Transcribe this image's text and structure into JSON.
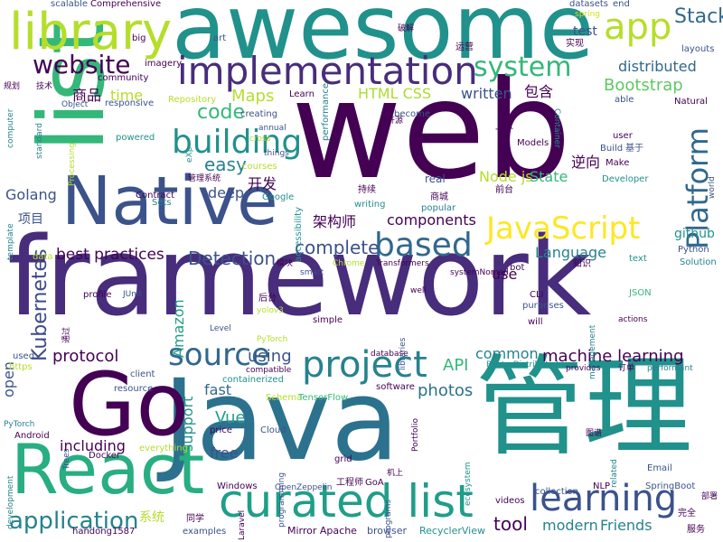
{
  "words": [
    {
      "text": "web",
      "color": "#440154"
    },
    {
      "text": "framework",
      "color": "#472d7b"
    },
    {
      "text": "awesome",
      "color": "#21918c"
    },
    {
      "text": "Java",
      "color": "#2c728e"
    },
    {
      "text": "list",
      "color": "#35b779"
    },
    {
      "text": "管理",
      "color": "#21918c"
    },
    {
      "text": "Go",
      "color": "#440154"
    },
    {
      "text": "React",
      "color": "#28ae80"
    },
    {
      "text": "Native",
      "color": "#3b528b"
    },
    {
      "text": "library",
      "color": "#b5de2b"
    },
    {
      "text": "implementation",
      "color": "#472d7b"
    },
    {
      "text": "curated list",
      "color": "#1f9e89"
    },
    {
      "text": "project",
      "color": "#26828e"
    },
    {
      "text": "source",
      "color": "#31688e"
    },
    {
      "text": "learning",
      "color": "#3b528b"
    },
    {
      "text": "building",
      "color": "#21918c"
    },
    {
      "text": "based",
      "color": "#31688e"
    },
    {
      "text": "JavaScript",
      "color": "#fde725"
    },
    {
      "text": "app",
      "color": "#b5de2b"
    },
    {
      "text": "system",
      "color": "#35b779"
    },
    {
      "text": "website",
      "color": "#440154"
    },
    {
      "text": "Platform",
      "color": "#31688e"
    },
    {
      "text": "application",
      "color": "#26828e"
    },
    {
      "text": "Kubernetes",
      "color": "#3e4a89"
    },
    {
      "text": "Stack",
      "color": "#31688e"
    },
    {
      "text": "code",
      "color": "#35b779"
    },
    {
      "text": "easy",
      "color": "#26828e"
    },
    {
      "text": "complete",
      "color": "#3b528b"
    },
    {
      "text": "Detection",
      "color": "#3b528b"
    },
    {
      "text": "machine learning",
      "color": "#440154"
    },
    {
      "text": "tool",
      "color": "#440154"
    },
    {
      "text": "Bootstrap",
      "color": "#5ec962"
    },
    {
      "text": "distributed",
      "color": "#31688e"
    },
    {
      "text": "Maps",
      "color": "#b5de2b"
    },
    {
      "text": "HTML CSS",
      "color": "#addc30"
    },
    {
      "text": "Golang",
      "color": "#3b528b"
    },
    {
      "text": "components",
      "color": "#440154"
    },
    {
      "text": "best practices",
      "color": "#440154"
    },
    {
      "text": "Language",
      "color": "#26828e"
    },
    {
      "text": "Node js",
      "color": "#b5de2b"
    },
    {
      "text": "protocol",
      "color": "#440154"
    },
    {
      "text": "API",
      "color": "#35b779"
    },
    {
      "text": "photos",
      "color": "#2c728e"
    },
    {
      "text": "Vue",
      "color": "#1f9e89"
    },
    {
      "text": "modern",
      "color": "#26828e"
    },
    {
      "text": "Friends",
      "color": "#26828e"
    },
    {
      "text": "common",
      "color": "#26828e"
    },
    {
      "text": "using",
      "color": "#3b528b"
    },
    {
      "text": "fast",
      "color": "#31688e"
    },
    {
      "text": "free",
      "color": "#3b528b"
    },
    {
      "text": "deep",
      "color": "#3b528b"
    },
    {
      "text": "open",
      "color": "#3b528b"
    },
    {
      "text": "including",
      "color": "#440154"
    },
    {
      "text": "Amazon",
      "color": "#1f9e89"
    },
    {
      "text": "support",
      "color": "#21918c"
    },
    {
      "text": "use",
      "color": "#440154"
    },
    {
      "text": "test",
      "color": "#3b528b"
    },
    {
      "text": "github",
      "color": "#21918c"
    },
    {
      "text": "written",
      "color": "#3b528b"
    },
    {
      "text": "time",
      "color": "#b5de2b"
    },
    {
      "text": "State",
      "color": "#35b779"
    },
    {
      "text": "逆向",
      "color": "#440154"
    },
    {
      "text": "开发",
      "color": "#440154"
    },
    {
      "text": "架构师",
      "color": "#440154"
    },
    {
      "text": "商品",
      "color": "#440154"
    },
    {
      "text": "包含",
      "color": "#440154"
    },
    {
      "text": "项目",
      "color": "#3b528b"
    },
    {
      "text": "系统",
      "color": "#b5de2b"
    },
    {
      "text": "Comprehensive",
      "color": "#440154"
    },
    {
      "text": "scalable",
      "color": "#3b528b"
    },
    {
      "text": "datasets",
      "color": "#3b528b"
    },
    {
      "text": "end",
      "color": "#3b528b"
    },
    {
      "text": "spring",
      "color": "#d2e21b"
    },
    {
      "text": "big",
      "color": "#440154"
    },
    {
      "text": "art",
      "color": "#3b528b"
    },
    {
      "text": "imagery",
      "color": "#440154"
    },
    {
      "text": "community",
      "color": "#440154"
    },
    {
      "text": "Repository",
      "color": "#b5de2b"
    },
    {
      "text": "responsive",
      "color": "#3b528b"
    },
    {
      "text": "creating",
      "color": "#3b528b"
    },
    {
      "text": "Learn",
      "color": "#440154"
    },
    {
      "text": "performance",
      "color": "#26828e"
    },
    {
      "text": "become",
      "color": "#3b528b"
    },
    {
      "text": "运营",
      "color": "#440154"
    },
    {
      "text": "实现",
      "color": "#440154"
    },
    {
      "text": "layouts",
      "color": "#3b528b"
    },
    {
      "text": "Natural",
      "color": "#440154"
    },
    {
      "text": "able",
      "color": "#3b528b"
    },
    {
      "text": "user",
      "color": "#440154"
    },
    {
      "text": "Build",
      "color": "#3b528b"
    },
    {
      "text": "基于",
      "color": "#3b528b"
    },
    {
      "text": "Make",
      "color": "#440154"
    },
    {
      "text": "Developer",
      "color": "#21918c"
    },
    {
      "text": "computer",
      "color": "#26828e"
    },
    {
      "text": "standard",
      "color": "#26828e"
    },
    {
      "text": "Object",
      "color": "#3b528b"
    },
    {
      "text": "powered",
      "color": "#21918c"
    },
    {
      "text": "Processing",
      "color": "#b5de2b"
    },
    {
      "text": "Sets",
      "color": "#26828e"
    },
    {
      "text": "courses",
      "color": "#b5de2b"
    },
    {
      "text": "Google",
      "color": "#21918c"
    },
    {
      "text": "Contract",
      "color": "#440154"
    },
    {
      "text": "annual",
      "color": "#3b528b"
    },
    {
      "text": "things",
      "color": "#3b528b"
    },
    {
      "text": "accessibility",
      "color": "#21918c"
    },
    {
      "text": "持续",
      "color": "#440154"
    },
    {
      "text": "writing",
      "color": "#21918c"
    },
    {
      "text": "popular",
      "color": "#26828e"
    },
    {
      "text": "real",
      "color": "#3b528b"
    },
    {
      "text": "一个",
      "color": "#440154"
    },
    {
      "text": "Models",
      "color": "#440154"
    },
    {
      "text": "前台",
      "color": "#440154"
    },
    {
      "text": "商城",
      "color": "#440154"
    },
    {
      "text": "Container",
      "color": "#21918c"
    },
    {
      "text": "template",
      "color": "#26828e"
    },
    {
      "text": "data",
      "color": "#b5de2b"
    },
    {
      "text": "Chrome",
      "color": "#b5de2b"
    },
    {
      "text": "smart",
      "color": "#3b528b"
    },
    {
      "text": "Transformers",
      "color": "#440154"
    },
    {
      "text": "bot",
      "color": "#440154"
    },
    {
      "text": "知识",
      "color": "#440154"
    },
    {
      "text": "Python",
      "color": "#3b528b"
    },
    {
      "text": "Solution",
      "color": "#26828e"
    },
    {
      "text": "text",
      "color": "#21918c"
    },
    {
      "text": "JSON",
      "color": "#35b779"
    },
    {
      "text": "profile",
      "color": "#440154"
    },
    {
      "text": "JUnit",
      "color": "#3b528b"
    },
    {
      "text": "后台",
      "color": "#440154"
    },
    {
      "text": "simple",
      "color": "#440154"
    },
    {
      "text": "will",
      "color": "#440154"
    },
    {
      "text": "purposes",
      "color": "#3b528b"
    },
    {
      "text": "CLI",
      "color": "#440154"
    },
    {
      "text": "actions",
      "color": "#440154"
    },
    {
      "text": "Level",
      "color": "#3b528b"
    },
    {
      "text": "PyTorch",
      "color": "#b5de2b"
    },
    {
      "text": "database",
      "color": "#440154"
    },
    {
      "text": "RouterDistributed",
      "color": "#21918c"
    },
    {
      "text": "provides",
      "color": "#440154"
    },
    {
      "text": "订单",
      "color": "#440154"
    },
    {
      "text": "performant",
      "color": "#26828e"
    },
    {
      "text": "https",
      "color": "#b5de2b"
    },
    {
      "text": "used",
      "color": "#3b528b"
    },
    {
      "text": "client",
      "color": "#3b528b"
    },
    {
      "text": "resource",
      "color": "#3b528b"
    },
    {
      "text": "containerized",
      "color": "#21918c"
    },
    {
      "text": "compatible",
      "color": "#440154"
    },
    {
      "text": "Schema",
      "color": "#b5de2b"
    },
    {
      "text": "TensorFlow",
      "color": "#35b779"
    },
    {
      "text": "software",
      "color": "#440154"
    },
    {
      "text": "Cloud",
      "color": "#3b528b"
    },
    {
      "text": "price",
      "color": "#440154"
    },
    {
      "text": "everything",
      "color": "#b5de2b"
    },
    {
      "text": "Docker",
      "color": "#440154"
    },
    {
      "text": "Android",
      "color": "#440154"
    },
    {
      "text": "Windows",
      "color": "#440154"
    },
    {
      "text": "OpenZeppelin",
      "color": "#3b528b"
    },
    {
      "text": "工程师",
      "color": "#440154"
    },
    {
      "text": "GoA",
      "color": "#440154"
    },
    {
      "text": "NLP",
      "color": "#440154"
    },
    {
      "text": "SpringBoot",
      "color": "#3b528b"
    },
    {
      "text": "videos",
      "color": "#440154"
    },
    {
      "text": "Mirror Apache",
      "color": "#440154"
    },
    {
      "text": "browser",
      "color": "#3b528b"
    },
    {
      "text": "RecyclerView",
      "color": "#21918c"
    },
    {
      "text": "examples",
      "color": "#3b528b"
    },
    {
      "text": "handong1587",
      "color": "#440154"
    },
    {
      "text": "同学",
      "color": "#440154"
    },
    {
      "text": "服务",
      "color": "#440154"
    },
    {
      "text": "完全",
      "color": "#440154"
    },
    {
      "text": "grid",
      "color": "#440154"
    },
    {
      "text": "collection",
      "color": "#3b528b"
    },
    {
      "text": "Email",
      "color": "#3b528b"
    },
    {
      "text": "破解",
      "color": "#440154"
    },
    {
      "text": "规划",
      "color": "#440154"
    },
    {
      "text": "技术",
      "color": "#440154"
    },
    {
      "text": "管理系统",
      "color": "#440154"
    },
    {
      "text": "模块",
      "color": "#440154"
    },
    {
      "text": "图谱",
      "color": "#440154"
    },
    {
      "text": "机上",
      "color": "#440154"
    },
    {
      "text": "部署",
      "color": "#440154"
    },
    {
      "text": "开源",
      "color": "#440154"
    },
    {
      "text": "Trees",
      "color": "#3b528b"
    },
    {
      "text": "PyTorch",
      "color": "#26828e"
    },
    {
      "text": "Laravel",
      "color": "#440154"
    },
    {
      "text": "well",
      "color": "#440154"
    },
    {
      "text": "yolov3",
      "color": "#b5de2b"
    },
    {
      "text": "systemNomad",
      "color": "#440154"
    },
    {
      "text": "management",
      "color": "#26828e"
    },
    {
      "text": "related",
      "color": "#26828e"
    },
    {
      "text": "ecosystem",
      "color": "#21918c"
    },
    {
      "text": "libraries",
      "color": "#3b528b"
    },
    {
      "text": "development",
      "color": "#26828e"
    },
    {
      "text": "programs",
      "color": "#3b528b"
    },
    {
      "text": "programming",
      "color": "#3b528b"
    },
    {
      "text": "Portfolio",
      "color": "#440154"
    },
    {
      "text": "world",
      "color": "#3b528b"
    },
    {
      "text": "通过",
      "color": "#440154"
    },
    {
      "text": "eXp",
      "color": "#21918c"
    },
    {
      "text": "cross",
      "color": "#b5de2b"
    }
  ]
}
